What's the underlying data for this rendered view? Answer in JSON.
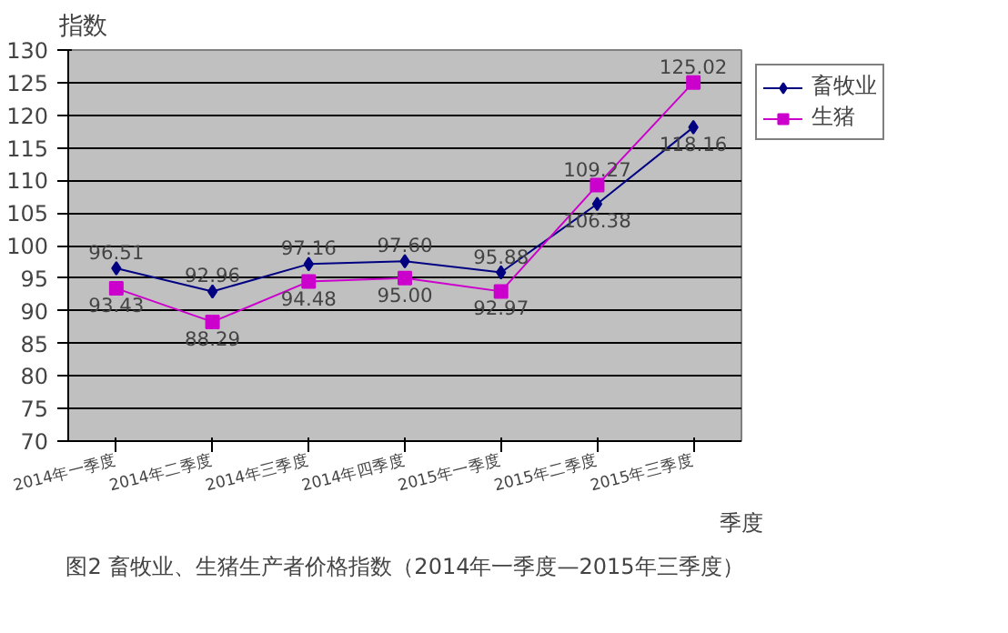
{
  "chart_data": {
    "type": "line",
    "title": "图2 畜牧业、生猪生产者价格指数（2014年一季度—2015年三季度）",
    "xlabel": "季度",
    "ylabel": "指数",
    "categories": [
      "2014年一季度",
      "2014年二季度",
      "2014年三季度",
      "2014年四季度",
      "2015年一季度",
      "2015年二季度",
      "2015年三季度"
    ],
    "series": [
      {
        "name": "畜牧业",
        "color": "#000080",
        "marker": "diamond",
        "values": [
          96.51,
          92.96,
          97.16,
          97.6,
          95.88,
          106.38,
          118.16
        ],
        "value_labels": [
          "96.51",
          "92.96",
          "97.16",
          "97.60",
          "95.88",
          "106.38",
          "118.16"
        ]
      },
      {
        "name": "生猪",
        "color": "#cc00cc",
        "marker": "square",
        "values": [
          93.43,
          88.29,
          94.48,
          95.0,
          92.97,
          109.27,
          125.02
        ],
        "value_labels": [
          "93.43",
          "88.29",
          "94.48",
          "95.00",
          "92.97",
          "109.27",
          "125.02"
        ]
      }
    ],
    "ylim": [
      70,
      130
    ],
    "yticks": [
      70,
      75,
      80,
      85,
      90,
      95,
      100,
      105,
      110,
      115,
      120,
      125,
      130
    ],
    "grid": "y",
    "legend": "right"
  }
}
